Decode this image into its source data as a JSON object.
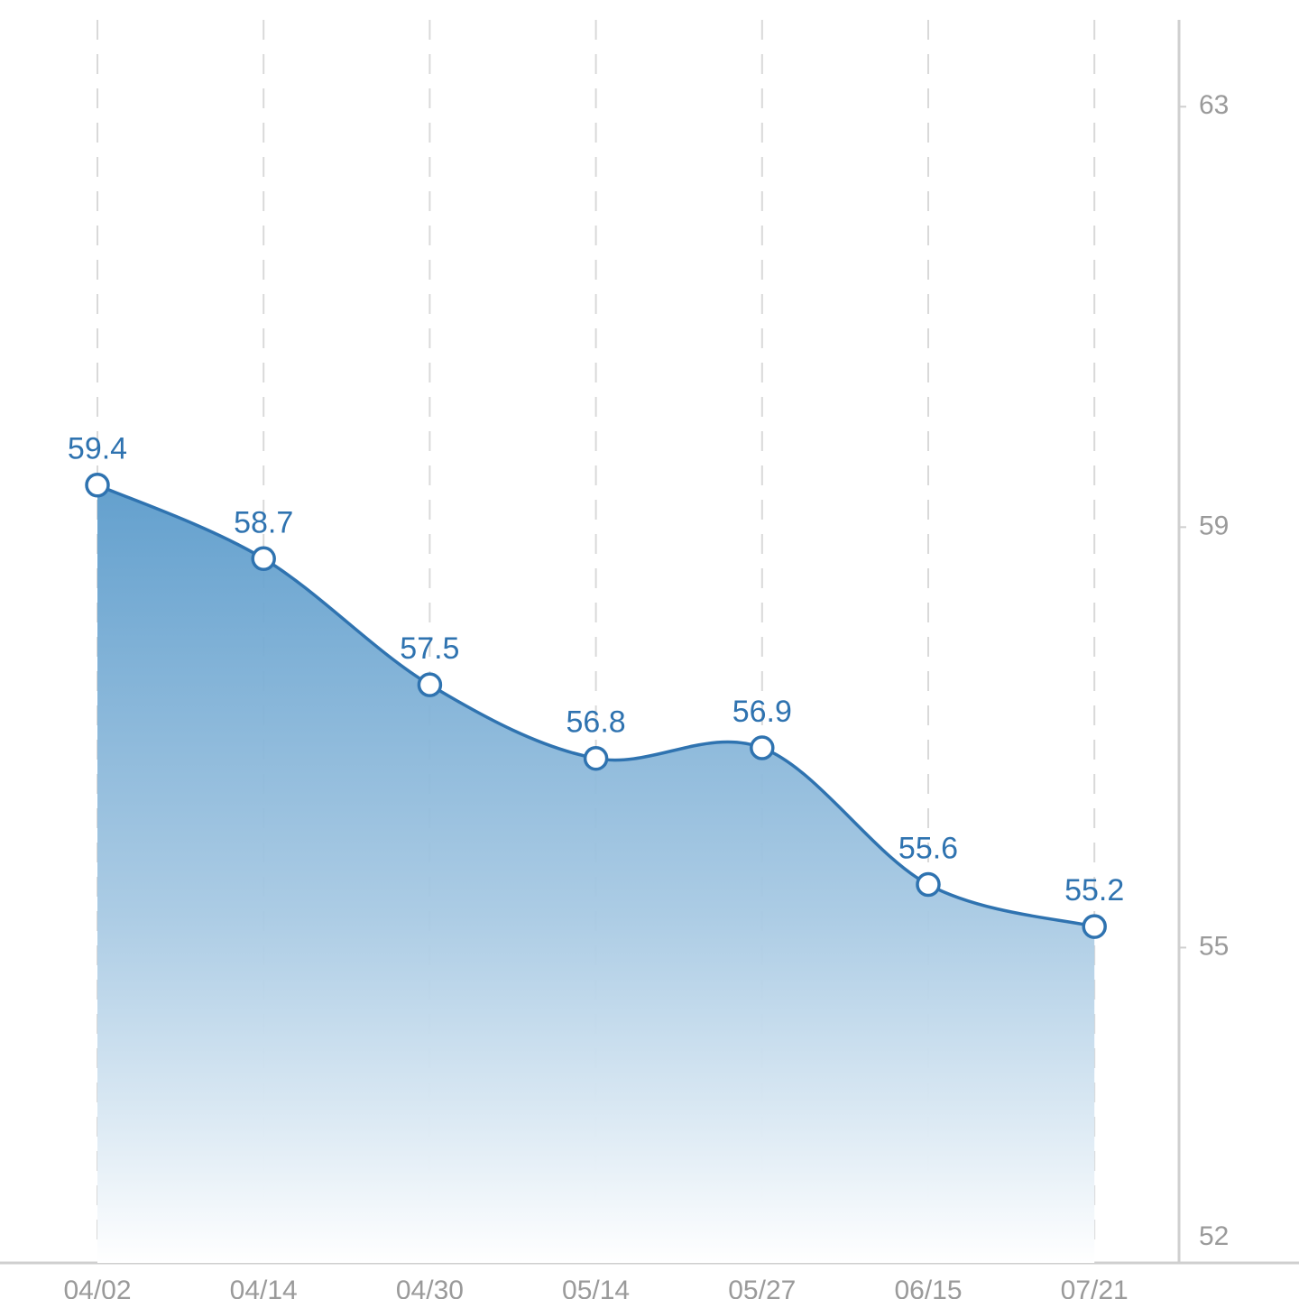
{
  "chart_data": {
    "type": "area",
    "categories": [
      "04/02",
      "04/14",
      "04/30",
      "05/14",
      "05/27",
      "06/15",
      "07/21"
    ],
    "values": [
      59.4,
      58.7,
      57.5,
      56.8,
      56.9,
      55.6,
      55.2
    ],
    "color": "#2f73b0",
    "ylim": [
      52,
      63.5
    ],
    "yticks": [
      52,
      55,
      59,
      63
    ],
    "y_axis_side": "right",
    "grid": "vertical-dashed",
    "smooth": true,
    "data_labels": true
  }
}
